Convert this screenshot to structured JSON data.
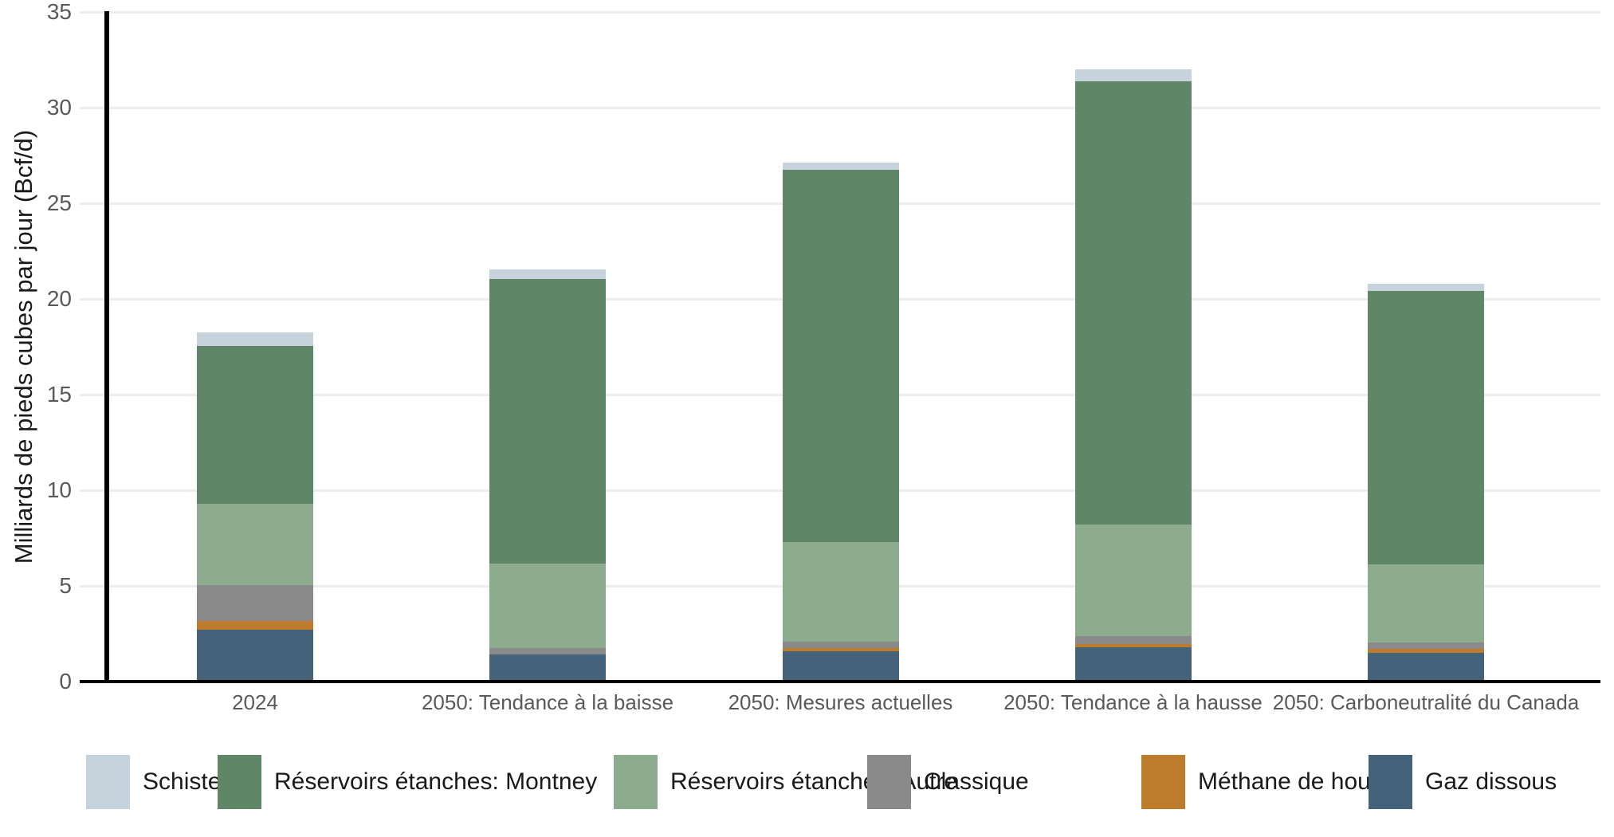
{
  "chart_data": {
    "type": "bar",
    "stacked": true,
    "title": "",
    "xlabel": "",
    "ylabel": "Milliards de pieds cubes par jour (Bcf/d)",
    "ylim": [
      0,
      35
    ],
    "yticks": [
      0,
      5,
      10,
      15,
      20,
      25,
      30,
      35
    ],
    "grid": true,
    "legend_position": "bottom",
    "categories": [
      "2024",
      "2050: Tendance à la baisse",
      "2050: Mesures actuelles",
      "2050: Tendance à la hausse",
      "2050: Carboneutralité du Canada"
    ],
    "series": [
      {
        "name": "Gaz dissous",
        "color": "#44627a",
        "values": [
          2.7,
          1.4,
          1.6,
          1.8,
          1.5
        ]
      },
      {
        "name": "Méthane de houille",
        "color": "#bd7c2b",
        "values": [
          0.45,
          0,
          0.15,
          0.17,
          0.2
        ]
      },
      {
        "name": "Classique",
        "color": "#8a8a8a",
        "values": [
          1.9,
          0.37,
          0.33,
          0.42,
          0.33
        ]
      },
      {
        "name": "Réservoirs étanches: Autre",
        "color": "#8dac8e",
        "values": [
          4.25,
          4.38,
          5.2,
          5.8,
          4.1
        ]
      },
      {
        "name": "Réservoirs étanches: Montney",
        "color": "#5f8767",
        "values": [
          8.25,
          14.9,
          19.45,
          23.2,
          14.3
        ]
      },
      {
        "name": "Schistes",
        "color": "#c6d2dc",
        "values": [
          0.7,
          0.5,
          0.4,
          0.62,
          0.35
        ]
      }
    ],
    "legend": [
      "Schistes",
      "Réservoirs étanches: Montney",
      "Réservoirs étanches: Autre",
      "Classique",
      "Méthane de houille",
      "Gaz dissous"
    ],
    "totals": [
      18.25,
      21.55,
      27.13,
      32.0,
      20.78
    ],
    "colors": {
      "grid": "#ededed",
      "axis": "#000000",
      "tick_text": "#595959",
      "axis_title_text": "#1a1a1a"
    }
  }
}
